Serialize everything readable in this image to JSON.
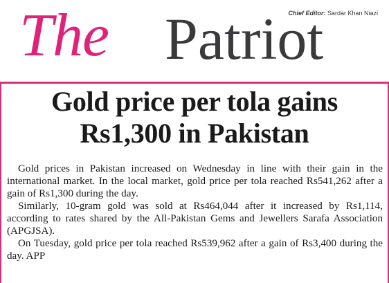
{
  "masthead": {
    "title_part1": "The",
    "title_part2": "Patriot",
    "chief_editor_label": "Chief Editor:",
    "chief_editor_name": " Sardar Khan Niazi"
  },
  "article": {
    "headline_line1": "Gold price per tola gains",
    "headline_line2": "Rs1,300 in Pakistan",
    "paragraphs": [
      "Gold prices in Pakistan increased on Wednesday in line with their gain in the international market. In the local market, gold price per tola reached Rs541,262 after a gain of Rs1,300 during the day.",
      "Similarly, 10-gram gold was sold at Rs464,044 after it increased by Rs1,114, according to rates shared by the All-Pakistan Gems and Jewellers Sarafa Association (APGJSA).",
      "On Tuesday, gold price per tola reached Rs539,962 after a gain of Rs3,400 during the day. APP"
    ]
  },
  "colors": {
    "brand_pink": "#e0237a",
    "masthead_gray": "#3a3a3c",
    "border_pink": "#d6307e",
    "text": "#1a1a1a"
  }
}
